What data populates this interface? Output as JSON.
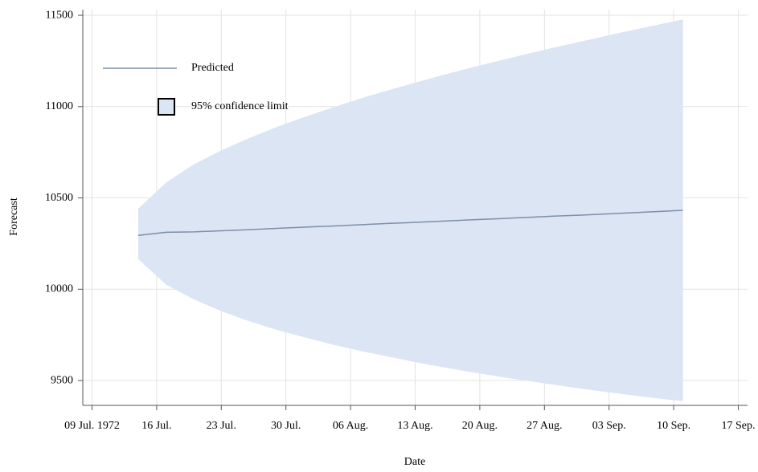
{
  "chart_data": {
    "type": "line",
    "x_label": "Date",
    "y_label": "Forecast",
    "x": [
      "1972-07-14",
      "1972-07-17",
      "1972-07-20",
      "1972-07-23",
      "1972-07-26",
      "1972-07-29",
      "1972-08-01",
      "1972-08-04",
      "1972-08-07",
      "1972-08-10",
      "1972-08-13",
      "1972-08-16",
      "1972-08-19",
      "1972-08-22",
      "1972-08-25",
      "1972-08-28",
      "1972-08-31",
      "1972-09-03",
      "1972-09-06",
      "1972-09-09",
      "1972-09-11"
    ],
    "series": [
      {
        "name": "Predicted",
        "color": "#7d8fa9",
        "values": [
          10295,
          10312,
          10314,
          10320,
          10326,
          10333,
          10340,
          10346,
          10353,
          10360,
          10366,
          10373,
          10380,
          10386,
          10393,
          10400,
          10406,
          10413,
          10420,
          10427,
          10432
        ]
      }
    ],
    "band": {
      "name": "95% confidence limit",
      "color": "#dbe5f3",
      "upper": [
        10440,
        10584,
        10683,
        10760,
        10827,
        10888,
        10943,
        10994,
        11043,
        11088,
        11131,
        11173,
        11213,
        11250,
        11287,
        11323,
        11357,
        11391,
        11424,
        11456,
        11477
      ],
      "lower": [
        10165,
        10026,
        9945,
        9880,
        9825,
        9778,
        9737,
        9698,
        9663,
        9632,
        9601,
        9573,
        9547,
        9522,
        9499,
        9477,
        9455,
        9435,
        9416,
        9398,
        9387
      ]
    },
    "xlim": [
      "1972-07-08",
      "1972-09-18"
    ],
    "xticks": [
      {
        "value": "1972-07-09",
        "label": "09 Jul. 1972"
      },
      {
        "value": "1972-07-16",
        "label": "16 Jul."
      },
      {
        "value": "1972-07-23",
        "label": "23 Jul."
      },
      {
        "value": "1972-07-30",
        "label": "30 Jul."
      },
      {
        "value": "1972-08-06",
        "label": "06 Aug."
      },
      {
        "value": "1972-08-13",
        "label": "13 Aug."
      },
      {
        "value": "1972-08-20",
        "label": "20 Aug."
      },
      {
        "value": "1972-08-27",
        "label": "27 Aug."
      },
      {
        "value": "1972-09-03",
        "label": "03 Sep."
      },
      {
        "value": "1972-09-10",
        "label": "10 Sep."
      },
      {
        "value": "1972-09-17",
        "label": "17 Sep."
      }
    ],
    "ylim": [
      9364,
      11531
    ],
    "yticks": [
      9500,
      10000,
      10500,
      11000,
      11500
    ],
    "grid": true,
    "legend": "upper left"
  }
}
